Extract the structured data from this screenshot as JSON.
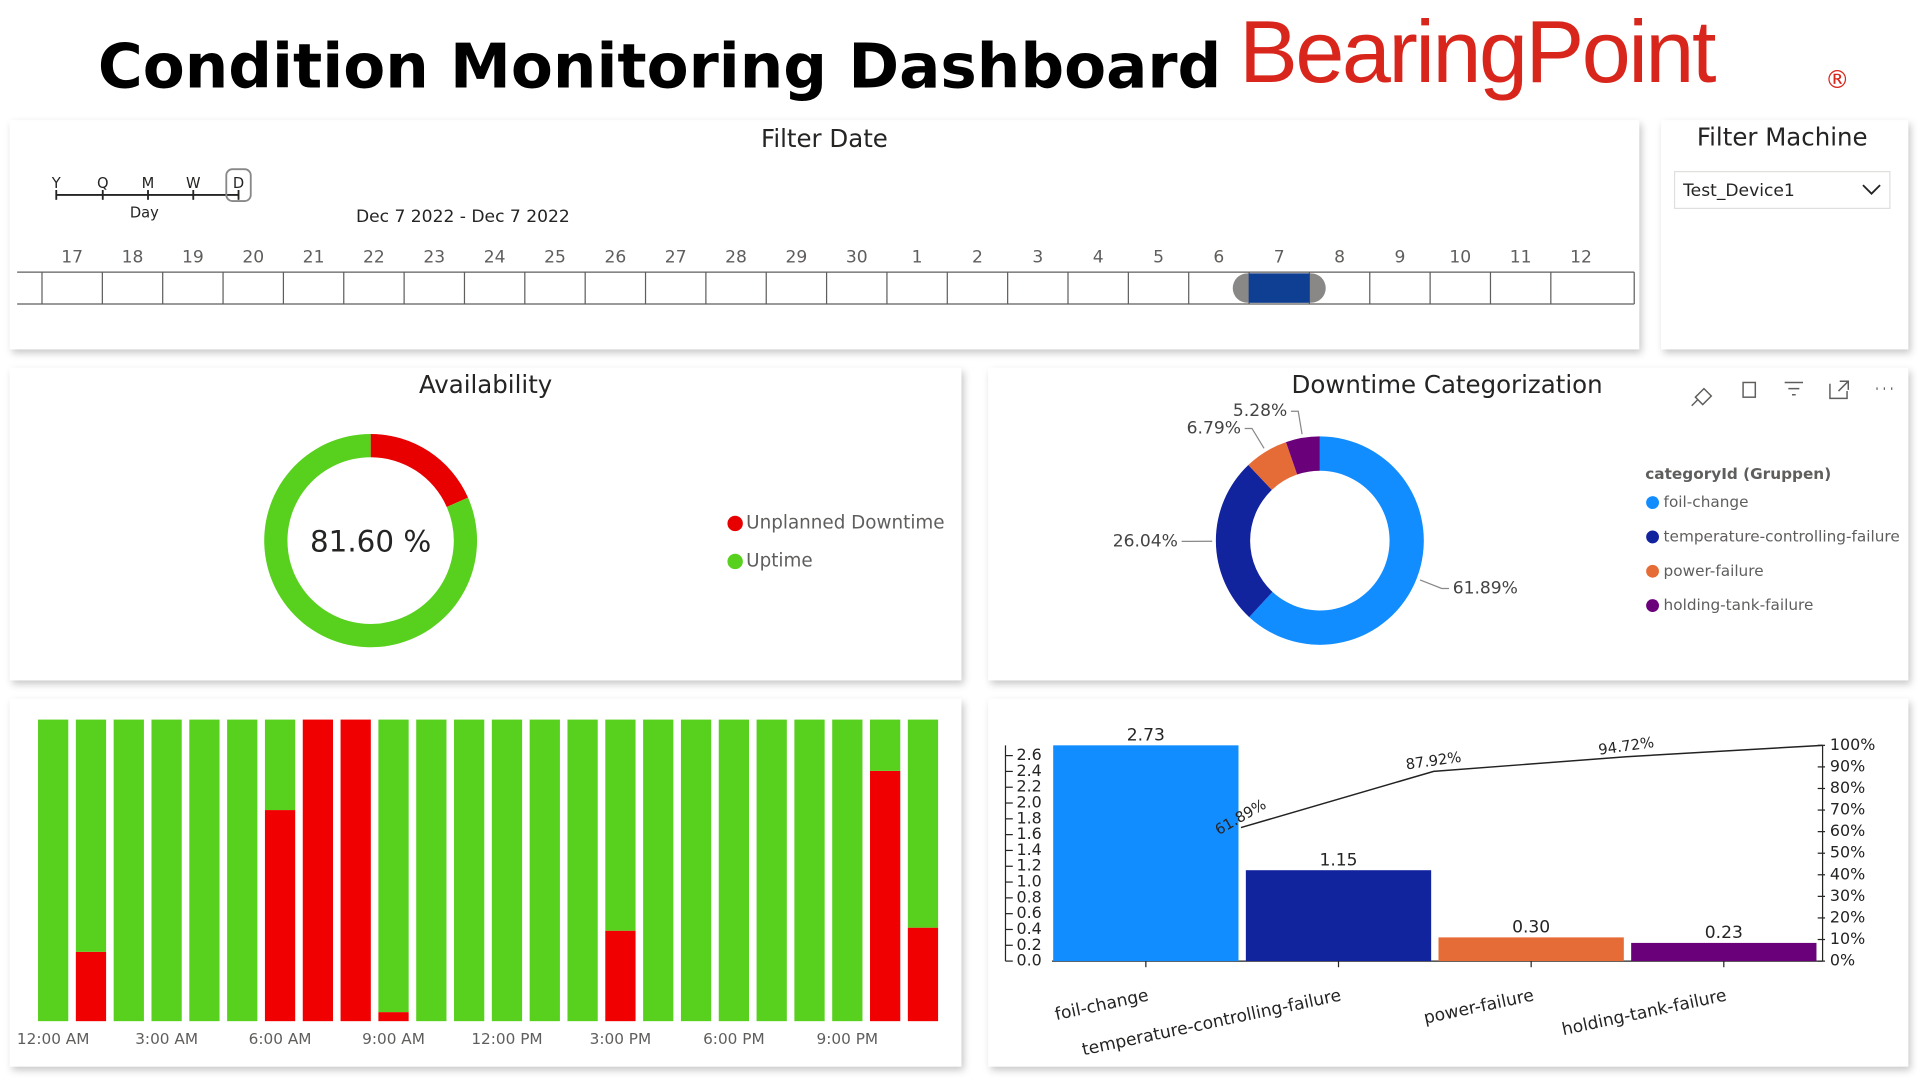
{
  "header": {
    "title": "Condition Monitoring Dashboard",
    "logo": "BearingPoint",
    "logo_mark": "®"
  },
  "filter_date": {
    "title": "Filter Date",
    "granularity": [
      "Y",
      "Q",
      "M",
      "W",
      "D"
    ],
    "granularity_label": "Day",
    "range": "Dec 7 2022 - Dec 7 2022",
    "days": [
      "17",
      "18",
      "19",
      "20",
      "21",
      "22",
      "23",
      "24",
      "25",
      "26",
      "27",
      "28",
      "29",
      "30",
      "1",
      "2",
      "3",
      "4",
      "5",
      "6",
      "7",
      "8",
      "9",
      "10",
      "11",
      "12"
    ]
  },
  "filter_machine": {
    "title": "Filter Machine",
    "selected": "Test_Device1"
  },
  "chart_data": [
    {
      "type": "donut",
      "title": "Availability",
      "center_label": "81.60 %",
      "categories": [
        "Unplanned Downtime",
        "Uptime"
      ],
      "values": [
        18.4,
        81.6
      ],
      "colors": [
        "#e80000",
        "#58d01e"
      ]
    },
    {
      "type": "donut",
      "title": "Downtime Categorization",
      "legend_title": "categoryId (Gruppen)",
      "categories": [
        "foil-change",
        "temperature-controlling-failure",
        "power-failure",
        "holding-tank-failure"
      ],
      "values": [
        61.89,
        26.04,
        6.79,
        5.28
      ],
      "value_labels": [
        "61.89%",
        "26.04%",
        "6.79%",
        "5.28%"
      ],
      "colors": [
        "#118dff",
        "#12239e",
        "#e66c37",
        "#6b007b"
      ]
    },
    {
      "type": "stacked_bar",
      "categories": [
        "12:00 AM",
        null,
        null,
        "3:00 AM",
        null,
        null,
        "6:00 AM",
        null,
        null,
        "9:00 AM",
        null,
        null,
        "12:00 PM",
        null,
        null,
        "3:00 PM",
        null,
        null,
        "6:00 PM",
        null,
        null,
        "9:00 PM",
        null,
        null
      ],
      "series": [
        {
          "color": "#f00000",
          "values": [
            0,
            23,
            0,
            0,
            0,
            0,
            70,
            100,
            100,
            3,
            0,
            0,
            0,
            0,
            0,
            30,
            0,
            0,
            0,
            0,
            0,
            0,
            83,
            31
          ]
        },
        {
          "color": "#58d01e",
          "values": [
            100,
            77,
            100,
            100,
            100,
            100,
            30,
            0,
            0,
            97,
            100,
            100,
            100,
            100,
            100,
            70,
            100,
            100,
            100,
            100,
            100,
            100,
            17,
            69
          ]
        }
      ]
    },
    {
      "type": "pareto",
      "categories": [
        "foil-change",
        "temperature-controlling-failure",
        "power-failure",
        "holding-tank-failure"
      ],
      "values": [
        2.73,
        1.15,
        0.3,
        0.23
      ],
      "value_labels": [
        "2.73",
        "1.15",
        "0.30",
        "0.23"
      ],
      "colors": [
        "#118dff",
        "#12239e",
        "#e66c37",
        "#6b007b"
      ],
      "ylim": [
        0,
        2.73
      ],
      "yticks": [
        {
          "value": 0,
          "label": "0.0"
        },
        0.2,
        0.4,
        0.6,
        0.8,
        {
          "value": 1,
          "label": "1.0"
        },
        1.2,
        1.4,
        1.6,
        1.8,
        {
          "value": 2,
          "label": "2.0"
        },
        2.2,
        2.4,
        2.6
      ],
      "y2lim": [
        0,
        100
      ],
      "y2ticks": [
        {
          "value": 0,
          "label": "0%"
        },
        {
          "value": 10,
          "label": "10%"
        },
        {
          "value": 20,
          "label": "20%"
        },
        {
          "value": 30,
          "label": "30%"
        },
        {
          "value": 40,
          "label": "40%"
        },
        {
          "value": 50,
          "label": "50%"
        },
        {
          "value": 60,
          "label": "60%"
        },
        {
          "value": 70,
          "label": "70%"
        },
        {
          "value": 80,
          "label": "80%"
        },
        {
          "value": 90,
          "label": "90%"
        },
        {
          "value": 100,
          "label": "100%"
        }
      ],
      "line": {
        "axis": "y2",
        "color": "#222222",
        "values": [
          61.89,
          87.92,
          94.72,
          100
        ],
        "value_labels": [
          "61.89%",
          "87.92%",
          "94.72%",
          null
        ]
      }
    }
  ]
}
